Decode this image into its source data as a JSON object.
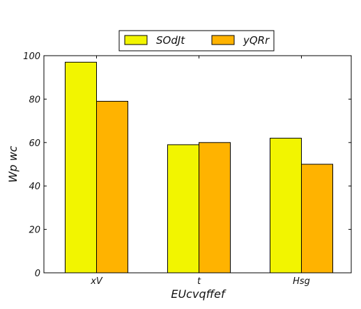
{
  "chart_data": {
    "type": "bar",
    "title": "",
    "xlabel": "EUcvqffef",
    "ylabel": "Wp   wc",
    "categories": [
      "xV",
      "t",
      "Hsg"
    ],
    "series": [
      {
        "name": "SOdJt",
        "values": [
          97,
          59,
          62
        ],
        "color": "#f2f500"
      },
      {
        "name": "yQRr",
        "values": [
          79,
          60,
          50
        ],
        "color": "#ffb300"
      }
    ],
    "ylim": [
      0,
      100
    ],
    "yticks": [
      0,
      20,
      40,
      60,
      80,
      100
    ],
    "grid": false,
    "legend": "top-center"
  }
}
